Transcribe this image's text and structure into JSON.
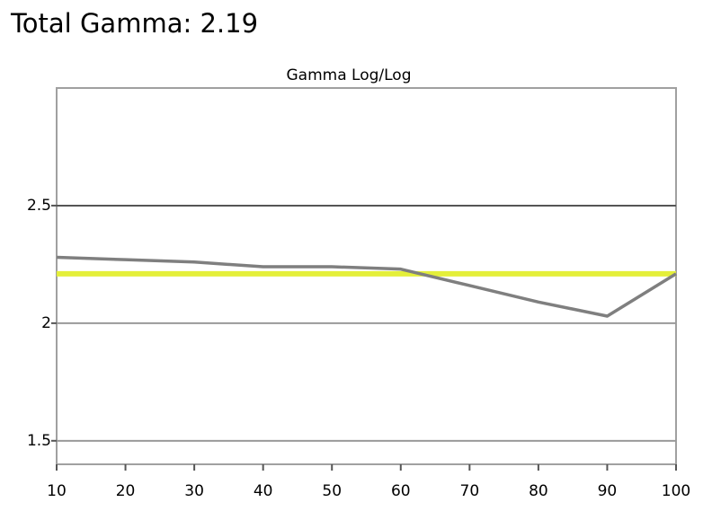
{
  "heading": "Total Gamma: 2.19",
  "chart_data": {
    "type": "line",
    "title": "Gamma Log/Log",
    "x": [
      10,
      20,
      30,
      40,
      50,
      60,
      70,
      80,
      90,
      100
    ],
    "series": [
      {
        "color": "#e4ef3a",
        "values": [
          2.21,
          2.21,
          2.21,
          2.21,
          2.21,
          2.21,
          2.21,
          2.21,
          2.21,
          2.21
        ]
      },
      {
        "color": "#7f7f7f",
        "values": [
          2.28,
          2.27,
          2.26,
          2.24,
          2.24,
          2.23,
          2.16,
          2.09,
          2.03,
          2.21
        ]
      }
    ],
    "xlim": [
      10,
      100
    ],
    "xticks": [
      10,
      20,
      30,
      40,
      50,
      60,
      70,
      80,
      90,
      100
    ],
    "ylim": [
      1.4,
      3.0
    ],
    "yticks": [
      1.5,
      2,
      2.5
    ],
    "grid": true
  }
}
